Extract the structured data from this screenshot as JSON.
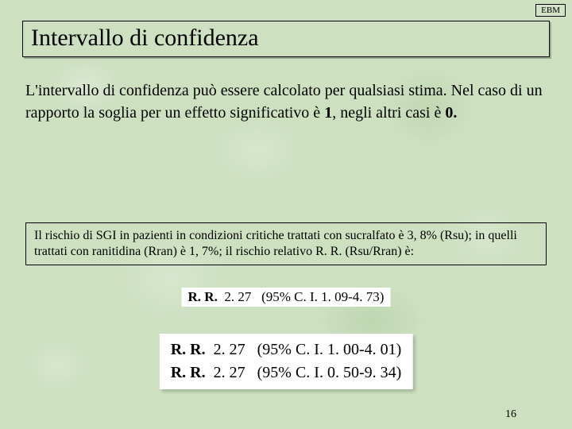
{
  "header": {
    "tag": "EBM",
    "title": "Intervallo di confidenza"
  },
  "body": {
    "text_before_one": "L'intervallo di confidenza può essere calcolato per qualsiasi stima. Nel caso di un rapporto la soglia per un effetto significativo è ",
    "one": "1",
    "text_mid": ", negli altri casi è ",
    "zero": "0."
  },
  "box": {
    "text": "Il rischio di SGI in pazienti in condizioni critiche trattati con sucralfato è 3, 8% (Rsu); in quelli trattati con ranitidina (Rran) è 1, 7%; il rischio relativo R. R. (Rsu/Rran) è:"
  },
  "rr_small": {
    "label": "R. R.",
    "value": "2. 27",
    "ci": "(95% C. I.   1. 09-4. 73)"
  },
  "rr_big": [
    {
      "label": "R. R.",
      "value": "2. 27",
      "ci": "(95% C. I.   1. 00-4. 01)"
    },
    {
      "label": "R. R.",
      "value": "2. 27",
      "ci": "(95% C. I.   0. 50-9. 34)"
    }
  ],
  "page": "16",
  "colors": {
    "bg": "#cde0c0",
    "text": "#000000",
    "highlight_bg": "#ffffff"
  }
}
